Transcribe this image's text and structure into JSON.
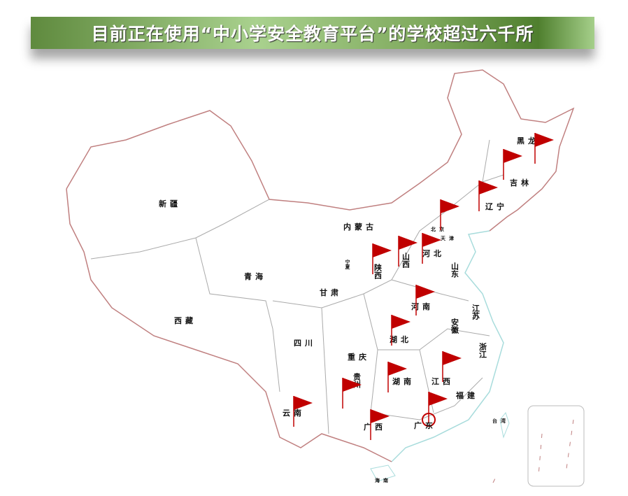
{
  "title": "目前正在使用“中小学安全教育平台”的学校超过六千所",
  "colors": {
    "flag": "#c00000",
    "border": "#c08080",
    "province_line": "#aaaaaa",
    "coast": "#a8dcdc"
  },
  "provinces": [
    "黑龙",
    "吉林",
    "辽宁",
    "北京",
    "天津",
    "河北",
    "山西",
    "山东",
    "内蒙古",
    "宁夏",
    "陕西",
    "甘肃",
    "新疆",
    "青海",
    "西藏",
    "四川",
    "重庆",
    "贵州",
    "云南",
    "广西",
    "广东",
    "湖南",
    "湖北",
    "河南",
    "江西",
    "福建",
    "浙江",
    "江苏",
    "安徽",
    "台湾",
    "海南"
  ],
  "flagged_icon": "red-flag-icon"
}
